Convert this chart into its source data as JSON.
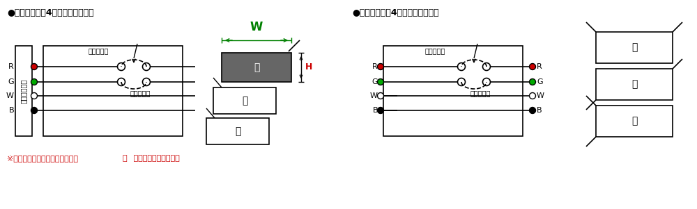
{
  "bg_color": "#ffffff",
  "title_left": "●端末マット（4線式片リード形）",
  "title_right": "●連結マット（4線式両リード形）",
  "note_text": "※端末マットのリード線出口は、",
  "note_circle_A": "Ⓐ",
  "note_text2": " 右上が標準仕様です。",
  "note_color": "#cc0000",
  "W_label": "W",
  "W_color": "#008000",
  "H_label": "H",
  "H_color": "#cc0000",
  "wire_labels": [
    "R",
    "G",
    "W",
    "B"
  ],
  "wire_fill_colors": [
    "#cc0000",
    "#00aa00",
    "#ffffff",
    "#000000"
  ],
  "controller_label": "コントローラ",
  "upper_plate": "上部電導板",
  "lower_plate": "下部電導板",
  "gray_fill": "#666666"
}
